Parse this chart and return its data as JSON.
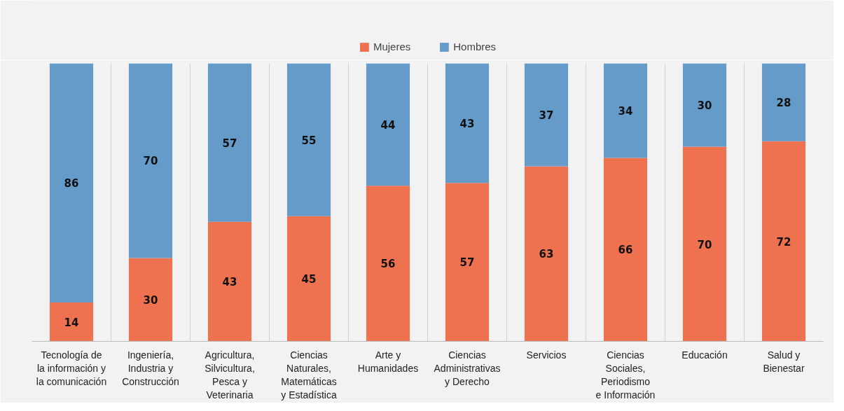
{
  "chart_data": {
    "type": "bar",
    "stacked": true,
    "data_labels": true,
    "ylim": [
      0,
      100
    ],
    "tick_labels": "x",
    "grid": "x",
    "legend": "top",
    "categories": [
      "Tecnología de\nla información y\nla comunicación",
      "Ingeniería,\nIndustria y\nConstrucción",
      "Agricultura,\nSilvicultura,\nPesca y\nVeterinaria",
      "Ciencias\nNaturales,\nMatemáticas\ny Estadística",
      "Arte y\nHumanidades",
      "Ciencias\nAdministrativas\ny Derecho",
      "Servicios",
      "Ciencias\nSociales,\nPeriodismo\ne Información",
      "Educación",
      "Salud y\nBienestar"
    ],
    "series": [
      {
        "name": "Mujeres",
        "color": "#ee7150",
        "values": [
          14,
          30,
          43,
          45,
          56,
          57,
          63,
          66,
          70,
          72
        ]
      },
      {
        "name": "Hombres",
        "color": "#659bc9",
        "values": [
          86,
          70,
          57,
          55,
          44,
          43,
          37,
          34,
          30,
          28
        ]
      }
    ]
  }
}
